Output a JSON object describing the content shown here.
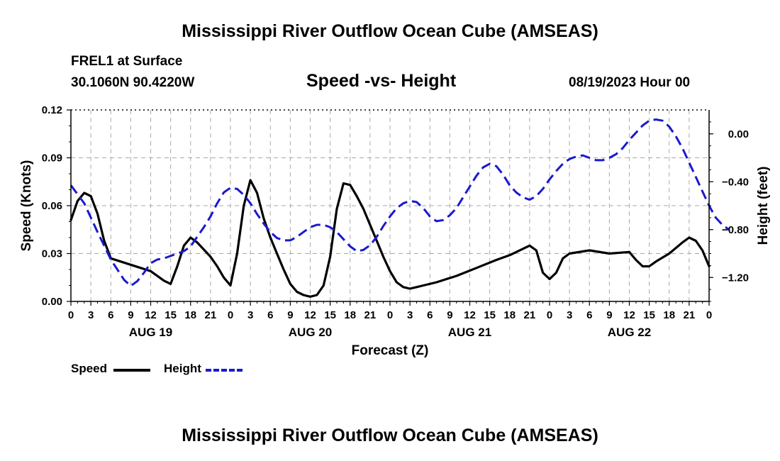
{
  "page": {
    "title": "Mississippi River Outflow Ocean Cube (AMSEAS)",
    "footer_title": "Mississippi River Outflow Ocean Cube (AMSEAS)",
    "station": "FREL1 at Surface",
    "coords": "30.1060N  90.4220W",
    "datetime": "08/19/2023 Hour 00"
  },
  "legend": {
    "speed_label": "Speed",
    "height_label": "Height"
  },
  "colors": {
    "speed": "#000000",
    "height": "#1a1acc",
    "grid": "#aaaaaa"
  },
  "chart_data": {
    "type": "line",
    "title": "Speed -vs- Height",
    "xlabel": "Forecast (Z)",
    "ylabel": "Speed (Knots)",
    "ylabel_right": "Height (feet)",
    "xlim": [
      0,
      96
    ],
    "ylim": [
      0,
      0.12
    ],
    "ylim_right": [
      -1.4,
      0.2
    ],
    "x_ticks": [
      0,
      3,
      6,
      9,
      12,
      15,
      18,
      21,
      24,
      27,
      30,
      33,
      36,
      39,
      42,
      45,
      48,
      51,
      54,
      57,
      60,
      63,
      66,
      69,
      72,
      75,
      78,
      81,
      84,
      87,
      90,
      93,
      96
    ],
    "x_tick_labels": [
      "0",
      "3",
      "6",
      "9",
      "12",
      "15",
      "18",
      "21",
      "0",
      "3",
      "6",
      "9",
      "12",
      "15",
      "18",
      "21",
      "0",
      "3",
      "6",
      "9",
      "12",
      "15",
      "18",
      "21",
      "0",
      "3",
      "6",
      "9",
      "12",
      "15",
      "18",
      "21",
      "0"
    ],
    "day_labels": [
      {
        "label": "AUG 19",
        "x": 12
      },
      {
        "label": "AUG 20",
        "x": 36
      },
      {
        "label": "AUG 21",
        "x": 60
      },
      {
        "label": "AUG 22",
        "x": 84
      }
    ],
    "y_ticks": [
      0,
      0.03,
      0.06,
      0.09,
      0.12
    ],
    "y_tick_labels": [
      "0.00",
      "0.03",
      "0.06",
      "0.09",
      "0.12"
    ],
    "y_ticks_right": [
      -1.2,
      -0.8,
      -0.4,
      0.0
    ],
    "y_tick_labels_right": [
      "−1.20",
      "−0.80",
      "−0.40",
      "0.00"
    ],
    "grid": true,
    "series": [
      {
        "name": "Speed",
        "axis": "left",
        "style": "solid",
        "points": [
          [
            0,
            0.051
          ],
          [
            1,
            0.063
          ],
          [
            2,
            0.068
          ],
          [
            3,
            0.066
          ],
          [
            4,
            0.055
          ],
          [
            5,
            0.038
          ],
          [
            6,
            0.027
          ],
          [
            9,
            0.023
          ],
          [
            12,
            0.019
          ],
          [
            14,
            0.013
          ],
          [
            15,
            0.011
          ],
          [
            16,
            0.022
          ],
          [
            17,
            0.035
          ],
          [
            18,
            0.04
          ],
          [
            19,
            0.037
          ],
          [
            21,
            0.028
          ],
          [
            22,
            0.022
          ],
          [
            23,
            0.015
          ],
          [
            24,
            0.01
          ],
          [
            25,
            0.03
          ],
          [
            26,
            0.06
          ],
          [
            27,
            0.076
          ],
          [
            28,
            0.068
          ],
          [
            29,
            0.052
          ],
          [
            30,
            0.04
          ],
          [
            31,
            0.03
          ],
          [
            32,
            0.02
          ],
          [
            33,
            0.011
          ],
          [
            34,
            0.006
          ],
          [
            35,
            0.004
          ],
          [
            36,
            0.003
          ],
          [
            37,
            0.004
          ],
          [
            38,
            0.01
          ],
          [
            39,
            0.028
          ],
          [
            40,
            0.058
          ],
          [
            41,
            0.074
          ],
          [
            42,
            0.073
          ],
          [
            43,
            0.066
          ],
          [
            44,
            0.058
          ],
          [
            45,
            0.048
          ],
          [
            46,
            0.038
          ],
          [
            47,
            0.028
          ],
          [
            48,
            0.019
          ],
          [
            49,
            0.012
          ],
          [
            50,
            0.009
          ],
          [
            51,
            0.008
          ],
          [
            52,
            0.009
          ],
          [
            53,
            0.01
          ],
          [
            55,
            0.012
          ],
          [
            58,
            0.016
          ],
          [
            61,
            0.021
          ],
          [
            64,
            0.026
          ],
          [
            66,
            0.029
          ],
          [
            68,
            0.033
          ],
          [
            69,
            0.035
          ],
          [
            70,
            0.032
          ],
          [
            71,
            0.018
          ],
          [
            72,
            0.014
          ],
          [
            73,
            0.018
          ],
          [
            74,
            0.027
          ],
          [
            75,
            0.03
          ],
          [
            78,
            0.032
          ],
          [
            81,
            0.03
          ],
          [
            84,
            0.031
          ],
          [
            85,
            0.026
          ],
          [
            86,
            0.022
          ],
          [
            87,
            0.022
          ],
          [
            88,
            0.025
          ],
          [
            90,
            0.03
          ],
          [
            92,
            0.037
          ],
          [
            93,
            0.04
          ],
          [
            94,
            0.038
          ],
          [
            95,
            0.032
          ],
          [
            96,
            0.022
          ]
        ]
      },
      {
        "name": "Height",
        "axis": "right",
        "style": "dashed",
        "points": [
          [
            0,
            -0.43
          ],
          [
            2,
            -0.58
          ],
          [
            4,
            -0.82
          ],
          [
            6,
            -1.05
          ],
          [
            8,
            -1.22
          ],
          [
            9,
            -1.27
          ],
          [
            10,
            -1.23
          ],
          [
            11,
            -1.16
          ],
          [
            12,
            -1.08
          ],
          [
            13,
            -1.05
          ],
          [
            14,
            -1.04
          ],
          [
            15,
            -1.02
          ],
          [
            16,
            -1.0
          ],
          [
            17,
            -0.98
          ],
          [
            18,
            -0.94
          ],
          [
            19,
            -0.86
          ],
          [
            20,
            -0.78
          ],
          [
            21,
            -0.69
          ],
          [
            22,
            -0.58
          ],
          [
            23,
            -0.49
          ],
          [
            24,
            -0.45
          ],
          [
            25,
            -0.46
          ],
          [
            26,
            -0.51
          ],
          [
            27,
            -0.58
          ],
          [
            28,
            -0.67
          ],
          [
            29,
            -0.75
          ],
          [
            30,
            -0.82
          ],
          [
            31,
            -0.87
          ],
          [
            32,
            -0.89
          ],
          [
            33,
            -0.89
          ],
          [
            34,
            -0.86
          ],
          [
            35,
            -0.82
          ],
          [
            36,
            -0.78
          ],
          [
            37,
            -0.76
          ],
          [
            38,
            -0.76
          ],
          [
            39,
            -0.78
          ],
          [
            40,
            -0.82
          ],
          [
            41,
            -0.88
          ],
          [
            42,
            -0.94
          ],
          [
            43,
            -0.98
          ],
          [
            44,
            -0.97
          ],
          [
            45,
            -0.93
          ],
          [
            46,
            -0.86
          ],
          [
            47,
            -0.77
          ],
          [
            48,
            -0.69
          ],
          [
            49,
            -0.62
          ],
          [
            50,
            -0.58
          ],
          [
            51,
            -0.56
          ],
          [
            52,
            -0.57
          ],
          [
            53,
            -0.62
          ],
          [
            54,
            -0.69
          ],
          [
            55,
            -0.73
          ],
          [
            56,
            -0.72
          ],
          [
            57,
            -0.68
          ],
          [
            58,
            -0.62
          ],
          [
            59,
            -0.53
          ],
          [
            60,
            -0.44
          ],
          [
            61,
            -0.35
          ],
          [
            62,
            -0.28
          ],
          [
            63,
            -0.25
          ],
          [
            64,
            -0.27
          ],
          [
            65,
            -0.34
          ],
          [
            66,
            -0.43
          ],
          [
            67,
            -0.49
          ],
          [
            68,
            -0.53
          ],
          [
            69,
            -0.55
          ],
          [
            70,
            -0.52
          ],
          [
            71,
            -0.46
          ],
          [
            72,
            -0.38
          ],
          [
            73,
            -0.31
          ],
          [
            74,
            -0.25
          ],
          [
            75,
            -0.21
          ],
          [
            76,
            -0.19
          ],
          [
            77,
            -0.18
          ],
          [
            78,
            -0.2
          ],
          [
            79,
            -0.22
          ],
          [
            80,
            -0.22
          ],
          [
            81,
            -0.2
          ],
          [
            82,
            -0.17
          ],
          [
            83,
            -0.12
          ],
          [
            84,
            -0.05
          ],
          [
            85,
            0.01
          ],
          [
            86,
            0.07
          ],
          [
            87,
            0.11
          ],
          [
            88,
            0.12
          ],
          [
            89,
            0.11
          ],
          [
            90,
            0.06
          ],
          [
            91,
            -0.02
          ],
          [
            92,
            -0.12
          ],
          [
            93,
            -0.24
          ],
          [
            94,
            -0.36
          ],
          [
            95,
            -0.48
          ],
          [
            96,
            -0.6
          ],
          [
            97,
            -0.7
          ],
          [
            98,
            -0.76
          ],
          [
            99,
            -0.8
          ]
        ]
      }
    ]
  }
}
